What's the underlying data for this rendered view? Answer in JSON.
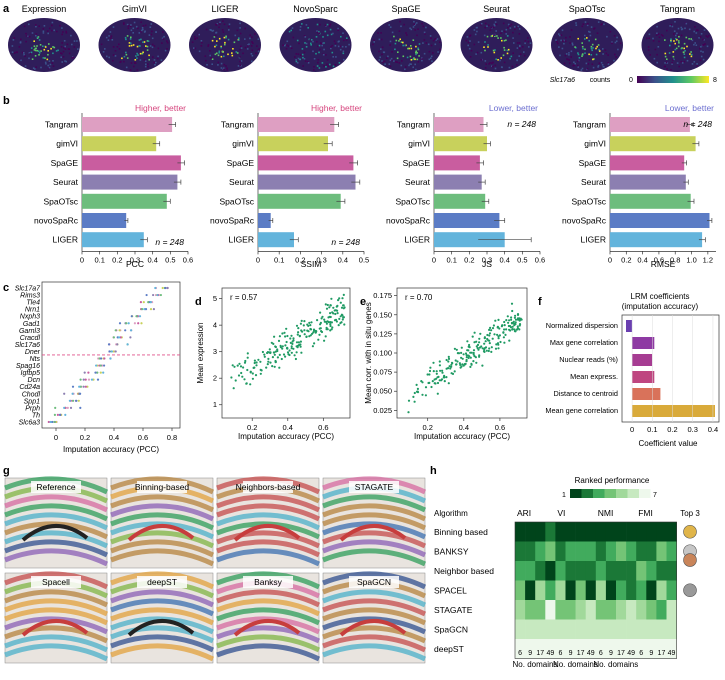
{
  "panel_a": {
    "letter": "a",
    "methods": [
      "Expression",
      "GimVI",
      "LIGER",
      "NovoSparc",
      "SpaGE",
      "Seurat",
      "SpaOTsc",
      "Tangram"
    ],
    "colorbar_gene": "Slc17a6",
    "colorbar_suffix": "counts",
    "colorbar_min": "0",
    "colorbar_max": "8"
  },
  "panel_b": {
    "letter": "b",
    "methods": [
      "Tangram",
      "gimVI",
      "SpaGE",
      "Seurat",
      "SpaOTsc",
      "novoSpaRc",
      "LIGER"
    ],
    "colors": [
      "#de9fc2",
      "#c8d15c",
      "#c95d9f",
      "#8c7fb1",
      "#6dbd7d",
      "#5b7cc5",
      "#63b4dc"
    ],
    "n_label": "n = 248",
    "charts": [
      {
        "metric": "PCC",
        "note": "Higher, better",
        "note_color": "#d6457e",
        "values": [
          0.51,
          0.42,
          0.56,
          0.54,
          0.48,
          0.25,
          0.35
        ],
        "errors": [
          0.02,
          0.02,
          0.02,
          0.02,
          0.02,
          0.01,
          0.02
        ],
        "ticks": [
          "0",
          "0.1",
          "0.2",
          "0.3",
          "0.4",
          "0.5",
          "0.6"
        ],
        "xmax": 0.6,
        "n_pos": "bottom"
      },
      {
        "metric": "SSIM",
        "note": "Higher, better",
        "note_color": "#d6457e",
        "values": [
          0.36,
          0.33,
          0.45,
          0.46,
          0.39,
          0.06,
          0.17
        ],
        "errors": [
          0.02,
          0.02,
          0.02,
          0.02,
          0.02,
          0.01,
          0.02
        ],
        "ticks": [
          "0",
          "0.1",
          "0.2",
          "0.3",
          "0.4",
          "0.5"
        ],
        "xmax": 0.5,
        "n_pos": "bottom"
      },
      {
        "metric": "JS",
        "note": "Lower, better",
        "note_color": "#6c6fd0",
        "values": [
          0.28,
          0.3,
          0.26,
          0.27,
          0.29,
          0.37,
          0.4
        ],
        "errors": [
          0.02,
          0.02,
          0.02,
          0.02,
          0.02,
          0.03,
          0.15
        ],
        "ticks": [
          "0",
          "0.1",
          "0.2",
          "0.3",
          "0.4",
          "0.5",
          "0.6"
        ],
        "xmax": 0.6,
        "n_pos": "top"
      },
      {
        "metric": "RMSE",
        "note": "Lower, better",
        "note_color": "#6c6fd0",
        "values": [
          0.98,
          1.05,
          0.91,
          0.93,
          0.99,
          1.22,
          1.13
        ],
        "errors": [
          0.04,
          0.04,
          0.03,
          0.03,
          0.04,
          0.03,
          0.04
        ],
        "ticks": [
          "0",
          "0.2",
          "0.4",
          "0.6",
          "0.8",
          "1.0",
          "1.2"
        ],
        "xmax": 1.3,
        "n_pos": "top"
      }
    ]
  },
  "panel_c": {
    "letter": "c",
    "genes": [
      "Slc17a7",
      "Rims3",
      "Tle4",
      "Nrn1",
      "Nxph3",
      "Gad1",
      "Garnl3",
      "Cracdl",
      "Slc17a6",
      "Dner",
      "Nts",
      "Spag16",
      "Igfbp5",
      "Dcn",
      "Cd24a",
      "Chodl",
      "Spp1",
      "Prph",
      "Th",
      "Slc6a3"
    ],
    "xlabel": "Imputation accuracy (PCC)",
    "ticks": [
      "0",
      "0.2",
      "0.4",
      "0.6",
      "0.8"
    ]
  },
  "panel_d": {
    "letter": "d",
    "annotation": "r = 0.57",
    "xlabel": "Imputation accuracy (PCC)",
    "ylabel": "Mean expression",
    "xticks": [
      "0.2",
      "0.4",
      "0.6"
    ],
    "yticks": [
      "1",
      "2",
      "3",
      "4",
      "5"
    ]
  },
  "panel_e": {
    "letter": "e",
    "annotation": "r = 0.70",
    "xlabel": "Imputation accuracy (PCC)",
    "ylabel": "Mean corr. with in situ genes",
    "xticks": [
      "0.2",
      "0.4",
      "0.6"
    ],
    "yticks": [
      "0.025",
      "0.050",
      "0.075",
      "0.100",
      "0.125",
      "0.150",
      "0.175"
    ]
  },
  "panel_f": {
    "letter": "f",
    "title_line1": "LRM coefficients",
    "title_line2": "(imputation accuracy)",
    "features": [
      "Normalized dispersion",
      "Max gene correlation",
      "Nuclear reads (%)",
      "Mean express.",
      "Distance to centroid",
      "Mean gene correlation"
    ],
    "values": [
      -0.03,
      0.11,
      0.1,
      0.11,
      0.14,
      0.41
    ],
    "colors": [
      "#6a3fb0",
      "#8e3aa3",
      "#a63c92",
      "#bf4680",
      "#d9725a",
      "#d9aa3a"
    ],
    "xlabel": "Coefficient value",
    "ticks": [
      "0",
      "0.1",
      "0.2",
      "0.3",
      "0.4"
    ]
  },
  "panel_g": {
    "letter": "g",
    "titles": [
      "Reference",
      "Binning-based",
      "Neighbors-based",
      "STAGATE",
      "Spacell",
      "deepST",
      "Banksy",
      "SpaGCN"
    ]
  },
  "panel_h": {
    "letter": "h",
    "legend_title": "Ranked performance",
    "legend_min": "1",
    "legend_max": "7",
    "algorithm_header": "Algorithm",
    "metrics": [
      "ARI",
      "VI",
      "NMI",
      "FMI"
    ],
    "algorithms": [
      "Binning based",
      "BANKSY",
      "Neighbor based",
      "SPACEL",
      "STAGATE",
      "SpaGCN",
      "deepST"
    ],
    "domain_ticks": [
      "6",
      "9",
      "17",
      "49"
    ],
    "domain_label": "No. domains",
    "top3_label": "Top 3",
    "ranks": [
      [
        1,
        1,
        1,
        2,
        1,
        1,
        1,
        1,
        1,
        1,
        1,
        1,
        1,
        1,
        1,
        1
      ],
      [
        2,
        2,
        3,
        4,
        2,
        3,
        3,
        3,
        2,
        3,
        4,
        3,
        2,
        2,
        4,
        3
      ],
      [
        3,
        3,
        2,
        1,
        3,
        2,
        2,
        2,
        3,
        2,
        2,
        2,
        4,
        3,
        2,
        2
      ],
      [
        4,
        1,
        5,
        3,
        5,
        1,
        4,
        1,
        5,
        1,
        3,
        2,
        3,
        1,
        5,
        3
      ],
      [
        5,
        4,
        4,
        7,
        4,
        4,
        5,
        6,
        4,
        4,
        5,
        6,
        5,
        4,
        3,
        6
      ],
      [
        6,
        6,
        6,
        6,
        6,
        6,
        6,
        6,
        6,
        6,
        6,
        6,
        6,
        6,
        6,
        6
      ],
      [
        7,
        7,
        7,
        7,
        7,
        7,
        7,
        7,
        7,
        7,
        7,
        7,
        7,
        7,
        7,
        7
      ]
    ]
  }
}
